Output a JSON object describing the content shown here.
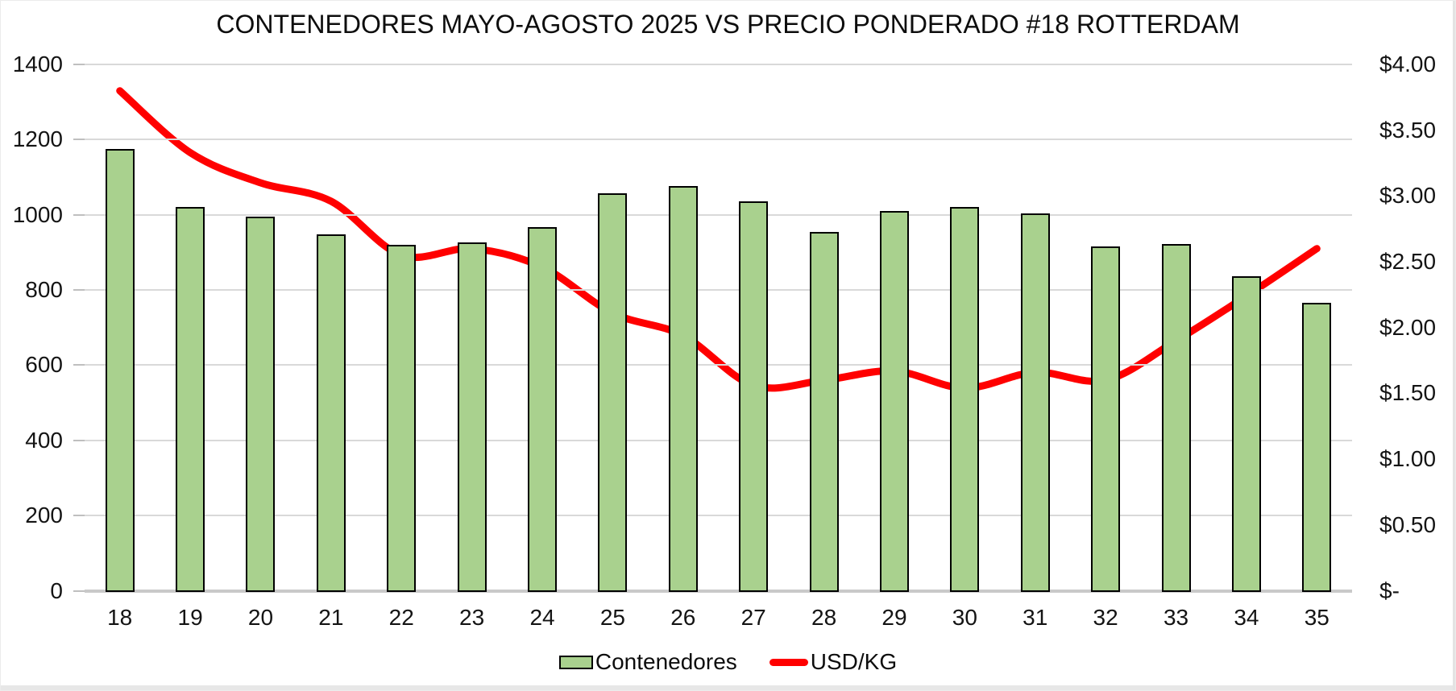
{
  "window": {
    "background": "#FFFFFF",
    "border_color": "#ECECEC"
  },
  "chart_data": {
    "type": "combo-bar-line",
    "title": "CONTENEDORES MAYO-AGOSTO 2025 VS PRECIO PONDERADO #18 ROTTERDAM",
    "categories": [
      "18",
      "19",
      "20",
      "21",
      "22",
      "23",
      "24",
      "25",
      "26",
      "27",
      "28",
      "29",
      "30",
      "31",
      "32",
      "33",
      "34",
      "35"
    ],
    "series": [
      {
        "name": "Contenedores",
        "type": "bar",
        "axis": "left",
        "fill_color": "#A9D18E",
        "border_color": "#000000",
        "values": [
          1176,
          1021,
          995,
          949,
          920,
          926,
          968,
          1058,
          1076,
          1035,
          955,
          1010,
          1021,
          1003,
          915,
          923,
          837,
          766
        ]
      },
      {
        "name": "USD/KG",
        "type": "line",
        "axis": "right",
        "color": "#FF0000",
        "smooth": true,
        "values": [
          3.8,
          3.33,
          3.1,
          2.96,
          2.55,
          2.6,
          2.46,
          2.11,
          1.94,
          1.56,
          1.6,
          1.67,
          1.54,
          1.66,
          1.6,
          1.9,
          2.24,
          2.6
        ]
      }
    ],
    "left_axis": {
      "min": 0,
      "max": 1400,
      "step": 200,
      "tick_labels": [
        "1400",
        "1200",
        "1000",
        "800",
        "600",
        "400",
        "200",
        "0"
      ]
    },
    "right_axis": {
      "min": 0,
      "max": 4,
      "step": 0.5,
      "tick_labels": [
        "$4.00",
        "$3.50",
        "$3.00",
        "$2.50",
        "$2.00",
        "$1.50",
        "$1.00",
        "$0.50",
        "$-"
      ]
    },
    "grid": true,
    "gridline_color": "#D9D9D9",
    "legend_position": "bottom"
  }
}
